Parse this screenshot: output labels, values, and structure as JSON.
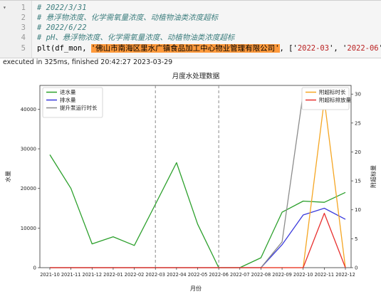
{
  "cell": {
    "lines": [
      {
        "num": "1",
        "text": "# 2022/3/31"
      },
      {
        "num": "2",
        "text": "# 悬浮物浓度、化学需氧量浓度、动植物油类浓度超标"
      },
      {
        "num": "3",
        "text": "# 2022/6/22"
      },
      {
        "num": "4",
        "text": "# pH、悬浮物浓度、化学需氧量浓度、动植物油类浓度超标"
      }
    ],
    "line5": {
      "num": "5",
      "prefix": "plt(df_mon, ",
      "highlight": "'佛山市南海区里水广镇食品加工中心物业管理有限公司'",
      "mid": ", ['",
      "s1": "2022-03",
      "sep": "', '",
      "s2": "2022-06",
      "suffix": "'])"
    },
    "execution_status": "executed in 325ms, finished 20:42:27 2023-03-29"
  },
  "chart_data": {
    "type": "line",
    "title": "月度水处理数据",
    "xlabel": "月份",
    "ylabel_left": "水量",
    "ylabel_right": "附超标量",
    "categories": [
      "2021-10",
      "2021-11",
      "2021-12",
      "2022-01",
      "2022-02",
      "2022-03",
      "2022-04",
      "2022-05",
      "2022-06",
      "2022-07",
      "2022-08",
      "2022-09",
      "2022-10",
      "2022-11",
      "2022-12"
    ],
    "ylim_left": [
      0,
      46000
    ],
    "ylim_right": [
      0,
      31.5
    ],
    "yticks_left": [
      "0",
      "10000",
      "20000",
      "30000",
      "40000"
    ],
    "yticks_right": [
      "0",
      "5",
      "10",
      "15",
      "20",
      "25",
      "30"
    ],
    "vlines": [
      "2022-03",
      "2022-06"
    ],
    "left_series": [
      {
        "name": "进水量",
        "color": "#2ca02c",
        "values": [
          28500,
          20000,
          6000,
          7800,
          5600,
          16000,
          26500,
          11000,
          0,
          0,
          2500,
          14000,
          16800,
          16500,
          19000
        ]
      },
      {
        "name": "排水量",
        "color": "#3b3bdc",
        "values": [
          0,
          0,
          0,
          0,
          0,
          0,
          0,
          0,
          0,
          0,
          0,
          5800,
          13300,
          15000,
          12200
        ]
      },
      {
        "name": "提升泵运行时长",
        "color": "#8c8c8c",
        "values": [
          0,
          0,
          0,
          0,
          0,
          0,
          0,
          0,
          0,
          0,
          0,
          6500,
          44000,
          43800,
          44300
        ]
      }
    ],
    "right_series": [
      {
        "name": "附超标时长",
        "color": "#f5a623",
        "values": [
          0,
          0,
          0,
          0,
          0,
          0,
          0,
          0,
          0,
          0,
          0,
          0,
          0,
          29,
          0
        ]
      },
      {
        "name": "附超标排放量",
        "color": "#e8302f",
        "values": [
          0,
          0,
          0,
          0,
          0,
          0,
          0,
          0,
          0,
          0,
          0,
          0,
          0,
          9.4,
          0
        ]
      }
    ],
    "legend_left_placement": "top-left",
    "legend_right_placement": "top-right",
    "grid": false
  }
}
